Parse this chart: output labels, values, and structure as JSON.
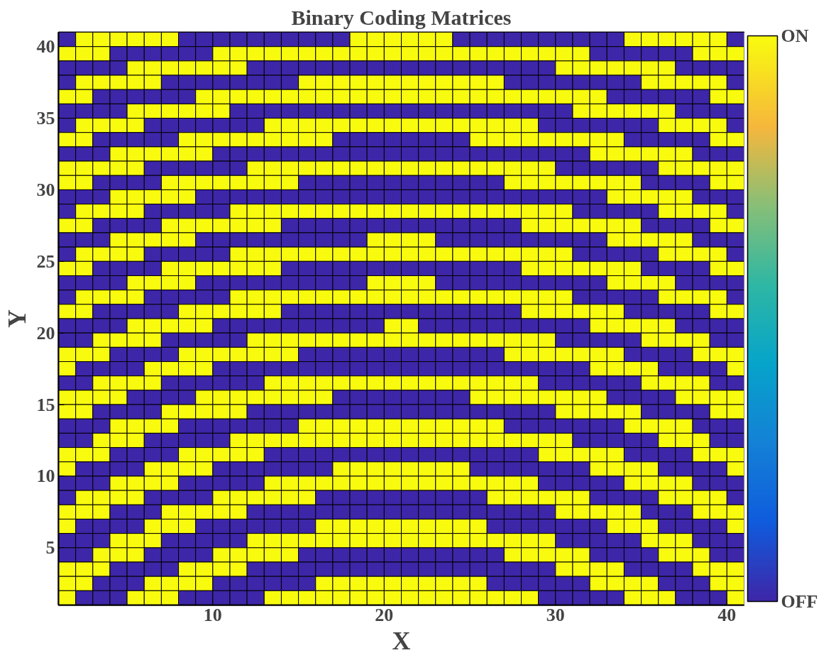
{
  "chart_data": {
    "type": "heatmap",
    "title": "Binary Coding Matrices",
    "xlabel": "X",
    "ylabel": "Y",
    "xlim": [
      1,
      41
    ],
    "ylim": [
      1,
      41
    ],
    "xticks": [
      10,
      20,
      30,
      40
    ],
    "yticks": [
      5,
      10,
      15,
      20,
      25,
      30,
      35,
      40
    ],
    "clim": [
      0,
      1
    ],
    "cticks": [
      {
        "value": 0,
        "label": "OFF"
      },
      {
        "value": 1,
        "label": "ON"
      }
    ],
    "cells": [
      [
        0,
        1,
        1,
        1,
        1,
        1,
        1,
        0,
        0,
        0,
        0,
        0,
        0,
        0,
        0,
        0,
        0,
        1,
        1,
        1,
        1,
        1,
        1,
        0,
        0,
        0,
        0,
        0,
        0,
        0,
        0,
        0,
        0,
        1,
        1,
        1,
        1,
        1,
        1,
        0
      ],
      [
        1,
        1,
        1,
        0,
        0,
        0,
        0,
        0,
        0,
        1,
        1,
        1,
        1,
        1,
        1,
        1,
        1,
        1,
        1,
        1,
        1,
        1,
        1,
        1,
        1,
        1,
        1,
        1,
        1,
        1,
        1,
        0,
        0,
        0,
        0,
        0,
        0,
        1,
        1,
        1
      ],
      [
        0,
        0,
        0,
        0,
        1,
        1,
        1,
        1,
        1,
        1,
        1,
        0,
        0,
        0,
        0,
        0,
        0,
        0,
        0,
        0,
        0,
        0,
        0,
        0,
        0,
        0,
        0,
        0,
        0,
        1,
        1,
        1,
        1,
        1,
        1,
        1,
        0,
        0,
        0,
        0
      ],
      [
        0,
        1,
        1,
        1,
        1,
        1,
        0,
        0,
        0,
        0,
        0,
        0,
        0,
        0,
        1,
        1,
        1,
        1,
        1,
        1,
        1,
        1,
        1,
        1,
        1,
        1,
        0,
        0,
        0,
        0,
        0,
        0,
        0,
        0,
        1,
        1,
        1,
        1,
        1,
        0
      ],
      [
        1,
        1,
        0,
        0,
        0,
        0,
        0,
        0,
        1,
        1,
        1,
        1,
        1,
        1,
        1,
        1,
        1,
        1,
        1,
        1,
        1,
        1,
        1,
        1,
        1,
        1,
        1,
        1,
        1,
        1,
        1,
        1,
        0,
        0,
        0,
        0,
        0,
        0,
        1,
        1
      ],
      [
        0,
        0,
        0,
        0,
        1,
        1,
        1,
        1,
        1,
        1,
        0,
        0,
        0,
        0,
        0,
        0,
        0,
        0,
        0,
        0,
        0,
        0,
        0,
        0,
        0,
        0,
        0,
        0,
        0,
        0,
        1,
        1,
        1,
        1,
        1,
        1,
        0,
        0,
        0,
        0
      ],
      [
        0,
        1,
        1,
        1,
        1,
        0,
        0,
        0,
        0,
        0,
        0,
        0,
        1,
        1,
        1,
        1,
        1,
        1,
        1,
        1,
        1,
        1,
        1,
        1,
        1,
        1,
        1,
        1,
        0,
        0,
        0,
        0,
        0,
        0,
        0,
        1,
        1,
        1,
        1,
        0
      ],
      [
        1,
        1,
        0,
        0,
        0,
        0,
        0,
        1,
        1,
        1,
        1,
        1,
        1,
        1,
        1,
        1,
        0,
        0,
        0,
        0,
        0,
        0,
        0,
        0,
        1,
        1,
        1,
        1,
        1,
        1,
        1,
        1,
        1,
        0,
        0,
        0,
        0,
        0,
        1,
        1
      ],
      [
        0,
        0,
        0,
        1,
        1,
        1,
        1,
        1,
        1,
        0,
        0,
        0,
        0,
        0,
        0,
        0,
        0,
        0,
        0,
        0,
        0,
        0,
        0,
        0,
        0,
        0,
        0,
        0,
        0,
        0,
        0,
        1,
        1,
        1,
        1,
        1,
        1,
        0,
        0,
        0
      ],
      [
        1,
        1,
        1,
        1,
        1,
        0,
        0,
        0,
        0,
        0,
        0,
        1,
        1,
        1,
        1,
        1,
        1,
        1,
        1,
        1,
        1,
        1,
        1,
        1,
        1,
        1,
        1,
        1,
        1,
        0,
        0,
        0,
        0,
        0,
        0,
        1,
        1,
        1,
        1,
        1
      ],
      [
        1,
        1,
        0,
        0,
        0,
        0,
        1,
        1,
        1,
        1,
        1,
        1,
        1,
        1,
        0,
        0,
        0,
        0,
        0,
        0,
        0,
        0,
        0,
        0,
        0,
        0,
        1,
        1,
        1,
        1,
        1,
        1,
        1,
        1,
        0,
        0,
        0,
        0,
        1,
        1
      ],
      [
        0,
        0,
        0,
        1,
        1,
        1,
        1,
        1,
        0,
        0,
        0,
        0,
        0,
        0,
        0,
        0,
        0,
        0,
        0,
        0,
        0,
        0,
        0,
        0,
        0,
        0,
        0,
        0,
        0,
        0,
        0,
        0,
        1,
        1,
        1,
        1,
        1,
        0,
        0,
        0
      ],
      [
        0,
        1,
        1,
        1,
        1,
        0,
        0,
        0,
        0,
        0,
        1,
        1,
        1,
        1,
        1,
        1,
        1,
        1,
        1,
        1,
        1,
        1,
        1,
        1,
        1,
        1,
        1,
        1,
        1,
        1,
        0,
        0,
        0,
        0,
        0,
        1,
        1,
        1,
        1,
        0
      ],
      [
        1,
        1,
        0,
        0,
        0,
        0,
        1,
        1,
        1,
        1,
        1,
        1,
        1,
        0,
        0,
        0,
        0,
        0,
        0,
        0,
        0,
        0,
        0,
        0,
        0,
        0,
        0,
        1,
        1,
        1,
        1,
        1,
        1,
        1,
        0,
        0,
        0,
        0,
        1,
        1
      ],
      [
        0,
        0,
        0,
        1,
        1,
        1,
        1,
        1,
        0,
        0,
        0,
        0,
        0,
        0,
        0,
        0,
        0,
        0,
        1,
        1,
        1,
        1,
        0,
        0,
        0,
        0,
        0,
        0,
        0,
        0,
        0,
        0,
        1,
        1,
        1,
        1,
        1,
        0,
        0,
        0
      ],
      [
        0,
        1,
        1,
        1,
        1,
        0,
        0,
        0,
        0,
        0,
        1,
        1,
        1,
        1,
        1,
        1,
        1,
        1,
        1,
        1,
        1,
        1,
        1,
        1,
        1,
        1,
        1,
        1,
        1,
        1,
        0,
        0,
        0,
        0,
        0,
        1,
        1,
        1,
        1,
        0
      ],
      [
        1,
        1,
        0,
        0,
        0,
        0,
        1,
        1,
        1,
        1,
        1,
        1,
        1,
        0,
        0,
        0,
        0,
        0,
        0,
        0,
        0,
        0,
        0,
        0,
        0,
        0,
        0,
        1,
        1,
        1,
        1,
        1,
        1,
        1,
        0,
        0,
        0,
        0,
        1,
        1
      ],
      [
        0,
        0,
        0,
        0,
        1,
        1,
        1,
        1,
        0,
        0,
        0,
        0,
        0,
        0,
        0,
        0,
        0,
        0,
        1,
        1,
        1,
        1,
        0,
        0,
        0,
        0,
        0,
        0,
        0,
        0,
        0,
        0,
        1,
        1,
        1,
        1,
        0,
        0,
        0,
        0
      ],
      [
        0,
        1,
        1,
        1,
        1,
        0,
        0,
        0,
        0,
        0,
        1,
        1,
        1,
        1,
        1,
        1,
        1,
        1,
        1,
        1,
        1,
        1,
        1,
        1,
        1,
        1,
        1,
        1,
        1,
        1,
        0,
        0,
        0,
        0,
        0,
        1,
        1,
        1,
        1,
        0
      ],
      [
        1,
        1,
        0,
        0,
        0,
        0,
        0,
        1,
        1,
        1,
        1,
        1,
        1,
        0,
        0,
        0,
        0,
        0,
        0,
        0,
        0,
        0,
        0,
        0,
        0,
        0,
        0,
        1,
        1,
        1,
        1,
        1,
        1,
        0,
        0,
        0,
        0,
        0,
        1,
        1
      ],
      [
        0,
        0,
        0,
        0,
        1,
        1,
        1,
        1,
        1,
        0,
        0,
        0,
        0,
        0,
        0,
        0,
        0,
        0,
        0,
        1,
        1,
        0,
        0,
        0,
        0,
        0,
        0,
        0,
        0,
        0,
        0,
        1,
        1,
        1,
        1,
        1,
        0,
        0,
        0,
        0
      ],
      [
        0,
        0,
        1,
        1,
        1,
        1,
        0,
        0,
        0,
        0,
        0,
        1,
        1,
        1,
        1,
        1,
        1,
        1,
        1,
        1,
        1,
        1,
        1,
        1,
        1,
        1,
        1,
        1,
        1,
        0,
        0,
        0,
        0,
        0,
        1,
        1,
        1,
        1,
        0,
        0
      ],
      [
        1,
        1,
        1,
        0,
        0,
        0,
        0,
        1,
        1,
        1,
        1,
        1,
        1,
        1,
        0,
        0,
        0,
        0,
        0,
        0,
        0,
        0,
        0,
        0,
        0,
        0,
        1,
        1,
        1,
        1,
        1,
        1,
        1,
        0,
        0,
        0,
        0,
        1,
        1,
        1
      ],
      [
        1,
        0,
        0,
        0,
        0,
        1,
        1,
        1,
        1,
        0,
        0,
        0,
        0,
        0,
        0,
        0,
        0,
        0,
        0,
        0,
        0,
        0,
        0,
        0,
        0,
        0,
        0,
        0,
        0,
        0,
        0,
        1,
        1,
        1,
        1,
        0,
        0,
        0,
        0,
        1
      ],
      [
        0,
        0,
        1,
        1,
        1,
        1,
        0,
        0,
        0,
        0,
        0,
        0,
        1,
        1,
        1,
        1,
        1,
        1,
        1,
        1,
        1,
        1,
        1,
        1,
        1,
        1,
        1,
        1,
        0,
        0,
        0,
        0,
        0,
        0,
        1,
        1,
        1,
        1,
        0,
        0
      ],
      [
        1,
        1,
        1,
        1,
        0,
        0,
        0,
        0,
        1,
        1,
        1,
        1,
        1,
        1,
        1,
        1,
        0,
        0,
        0,
        0,
        0,
        0,
        0,
        0,
        1,
        1,
        1,
        1,
        1,
        1,
        1,
        1,
        0,
        0,
        0,
        0,
        1,
        1,
        1,
        1
      ],
      [
        1,
        1,
        0,
        0,
        0,
        0,
        1,
        1,
        1,
        1,
        1,
        0,
        0,
        0,
        0,
        0,
        0,
        0,
        0,
        0,
        0,
        0,
        0,
        0,
        0,
        0,
        0,
        0,
        0,
        1,
        1,
        1,
        1,
        1,
        0,
        0,
        0,
        0,
        1,
        1
      ],
      [
        0,
        0,
        0,
        1,
        1,
        1,
        1,
        0,
        0,
        0,
        0,
        0,
        0,
        0,
        1,
        1,
        1,
        1,
        1,
        1,
        1,
        1,
        1,
        1,
        1,
        1,
        0,
        0,
        0,
        0,
        0,
        0,
        0,
        1,
        1,
        1,
        1,
        0,
        0,
        0
      ],
      [
        0,
        0,
        1,
        1,
        1,
        0,
        0,
        0,
        0,
        0,
        1,
        1,
        1,
        1,
        1,
        1,
        1,
        1,
        1,
        1,
        1,
        1,
        1,
        1,
        1,
        1,
        1,
        1,
        1,
        1,
        0,
        0,
        0,
        0,
        0,
        1,
        1,
        1,
        0,
        0
      ],
      [
        1,
        1,
        1,
        0,
        0,
        0,
        0,
        1,
        1,
        1,
        1,
        1,
        0,
        0,
        0,
        0,
        0,
        0,
        0,
        0,
        0,
        0,
        0,
        0,
        0,
        0,
        0,
        0,
        1,
        1,
        1,
        1,
        1,
        0,
        0,
        0,
        0,
        1,
        1,
        1
      ],
      [
        1,
        0,
        0,
        0,
        0,
        1,
        1,
        1,
        1,
        0,
        0,
        0,
        0,
        0,
        0,
        0,
        1,
        1,
        1,
        1,
        1,
        1,
        1,
        1,
        0,
        0,
        0,
        0,
        0,
        0,
        0,
        1,
        1,
        1,
        1,
        0,
        0,
        0,
        0,
        1
      ],
      [
        0,
        0,
        0,
        1,
        1,
        1,
        1,
        0,
        0,
        0,
        0,
        0,
        1,
        1,
        1,
        1,
        1,
        1,
        1,
        1,
        1,
        1,
        1,
        1,
        1,
        1,
        1,
        1,
        0,
        0,
        0,
        0,
        0,
        1,
        1,
        1,
        1,
        0,
        0,
        0
      ],
      [
        0,
        1,
        1,
        1,
        1,
        0,
        0,
        0,
        0,
        1,
        1,
        1,
        1,
        1,
        1,
        0,
        0,
        0,
        0,
        0,
        0,
        0,
        0,
        0,
        0,
        1,
        1,
        1,
        1,
        1,
        1,
        0,
        0,
        0,
        0,
        1,
        1,
        1,
        1,
        0
      ],
      [
        1,
        1,
        1,
        0,
        0,
        0,
        1,
        1,
        1,
        1,
        1,
        0,
        0,
        0,
        0,
        0,
        0,
        0,
        0,
        0,
        0,
        0,
        0,
        0,
        0,
        0,
        0,
        0,
        0,
        1,
        1,
        1,
        1,
        1,
        0,
        0,
        0,
        1,
        1,
        1
      ],
      [
        1,
        0,
        0,
        0,
        0,
        1,
        1,
        1,
        0,
        0,
        0,
        0,
        0,
        0,
        0,
        1,
        1,
        1,
        1,
        1,
        1,
        1,
        1,
        1,
        1,
        0,
        0,
        0,
        0,
        0,
        0,
        0,
        1,
        1,
        1,
        0,
        0,
        0,
        0,
        1
      ],
      [
        0,
        0,
        0,
        1,
        1,
        1,
        0,
        0,
        0,
        0,
        0,
        1,
        1,
        1,
        1,
        1,
        1,
        1,
        1,
        1,
        1,
        1,
        1,
        1,
        1,
        1,
        1,
        1,
        1,
        0,
        0,
        0,
        0,
        0,
        1,
        1,
        1,
        0,
        0,
        0
      ],
      [
        0,
        0,
        1,
        1,
        1,
        0,
        0,
        0,
        0,
        1,
        1,
        1,
        1,
        1,
        0,
        0,
        0,
        0,
        0,
        0,
        0,
        0,
        0,
        0,
        0,
        0,
        1,
        1,
        1,
        1,
        1,
        0,
        0,
        0,
        0,
        1,
        1,
        1,
        0,
        0
      ],
      [
        1,
        1,
        1,
        0,
        0,
        0,
        0,
        1,
        1,
        1,
        1,
        0,
        0,
        0,
        0,
        0,
        0,
        0,
        0,
        0,
        0,
        0,
        0,
        0,
        0,
        0,
        0,
        0,
        0,
        1,
        1,
        1,
        1,
        0,
        0,
        0,
        0,
        1,
        1,
        1
      ],
      [
        1,
        1,
        0,
        0,
        0,
        1,
        1,
        1,
        1,
        0,
        0,
        0,
        0,
        0,
        0,
        1,
        1,
        1,
        1,
        1,
        1,
        1,
        1,
        1,
        1,
        0,
        0,
        0,
        0,
        0,
        0,
        1,
        1,
        1,
        1,
        0,
        0,
        0,
        1,
        1
      ],
      [
        1,
        0,
        0,
        0,
        1,
        1,
        1,
        0,
        0,
        0,
        0,
        0,
        1,
        1,
        1,
        1,
        1,
        1,
        1,
        1,
        1,
        1,
        1,
        1,
        1,
        1,
        1,
        1,
        0,
        0,
        0,
        0,
        0,
        1,
        1,
        1,
        0,
        0,
        0,
        1
      ]
    ]
  }
}
